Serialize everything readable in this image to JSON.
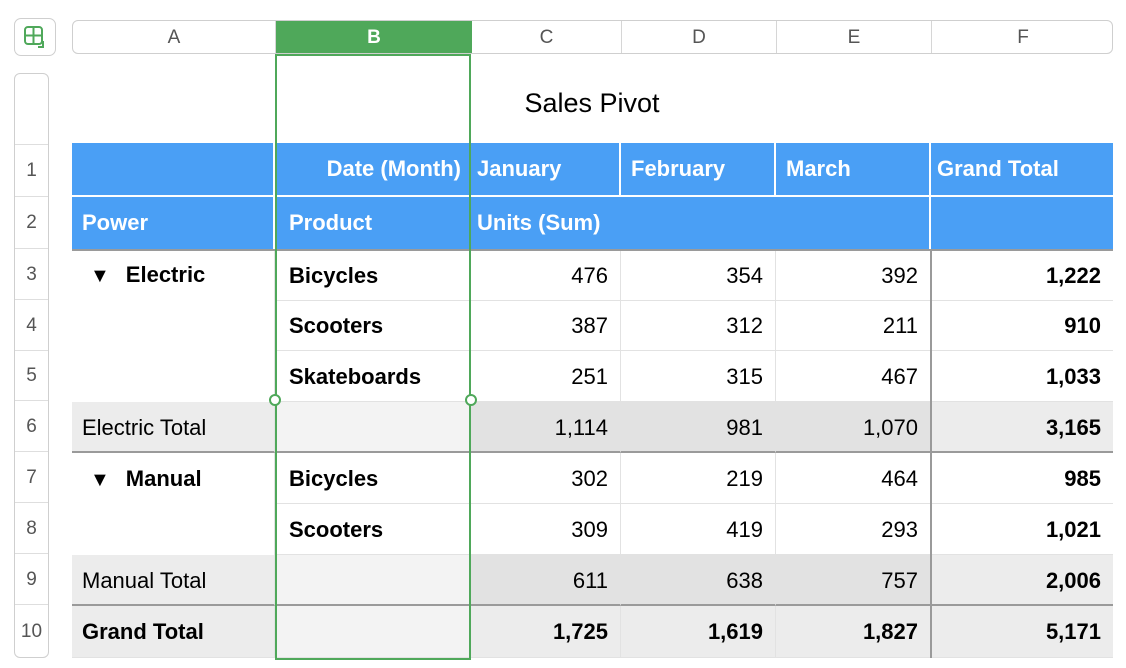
{
  "title": "Sales Pivot",
  "columns": [
    "A",
    "B",
    "C",
    "D",
    "E",
    "F"
  ],
  "selected_column": "B",
  "rows": [
    "1",
    "2",
    "3",
    "4",
    "5",
    "6",
    "7",
    "8",
    "9",
    "10"
  ],
  "header1": {
    "label": "Date (Month)",
    "january": "January",
    "february": "February",
    "march": "March",
    "grand_total": "Grand Total"
  },
  "header2": {
    "power": "Power",
    "product": "Product",
    "units": "Units (Sum)"
  },
  "electric": {
    "group": "Electric",
    "items": [
      {
        "product": "Bicycles",
        "jan": "476",
        "feb": "354",
        "mar": "392",
        "total": "1,222"
      },
      {
        "product": "Scooters",
        "jan": "387",
        "feb": "312",
        "mar": "211",
        "total": "910"
      },
      {
        "product": "Skateboards",
        "jan": "251",
        "feb": "315",
        "mar": "467",
        "total": "1,033"
      }
    ],
    "total": {
      "label": "Electric Total",
      "jan": "1,114",
      "feb": "981",
      "mar": "1,070",
      "total": "3,165"
    }
  },
  "manual": {
    "group": "Manual",
    "items": [
      {
        "product": "Bicycles",
        "jan": "302",
        "feb": "219",
        "mar": "464",
        "total": "985"
      },
      {
        "product": "Scooters",
        "jan": "309",
        "feb": "419",
        "mar": "293",
        "total": "1,021"
      }
    ],
    "total": {
      "label": "Manual Total",
      "jan": "611",
      "feb": "638",
      "mar": "757",
      "total": "2,006"
    }
  },
  "grand": {
    "label": "Grand Total",
    "jan": "1,725",
    "feb": "1,619",
    "mar": "1,827",
    "total": "5,171"
  },
  "icons": {
    "corner": "table-add-icon",
    "expand": "disclosure-triangle-icon"
  },
  "colors": {
    "header_blue": "#4a9ff5",
    "selection_green": "#4fa85a"
  }
}
